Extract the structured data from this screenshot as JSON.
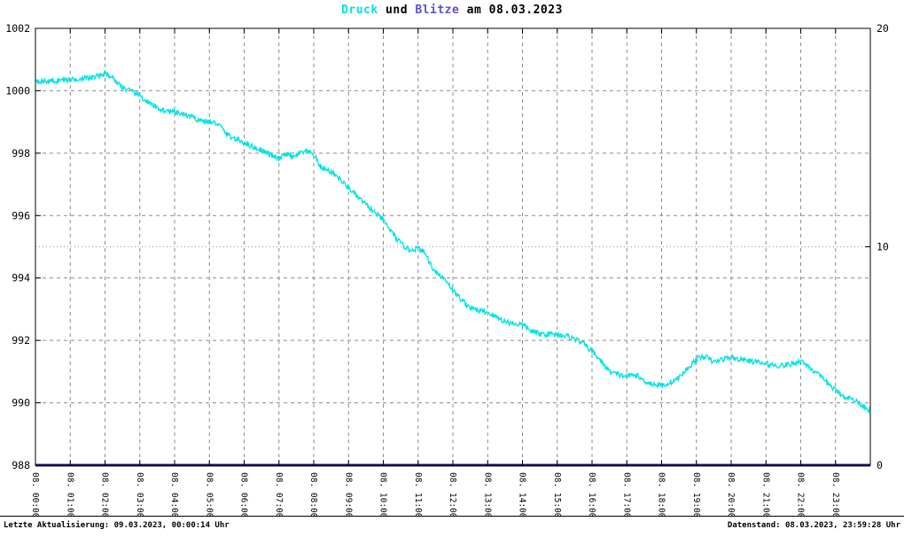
{
  "title": {
    "druck": "Druck",
    "und": "und",
    "blitze": "Blitze",
    "date": "am 08.03.2023"
  },
  "footer": {
    "left": "Letzte Aktualisierung: 09.03.2023, 00:00:14 Uhr",
    "right": "Datenstand: 08.03.2023, 23:59:28 Uhr"
  },
  "colors": {
    "druck": "#00e2e2",
    "blitze_title": "#5a4fd2",
    "blitze_line": "#221b7d",
    "grid": "#8c8c8c",
    "grid_dotted": "#9a9a9a",
    "axis": "#000000"
  },
  "chart_data": {
    "type": "line",
    "title": "Druck und Blitze am 08.03.2023",
    "x_range_hours": [
      0,
      24
    ],
    "x_tick_labels": [
      "08. 00:00",
      "08. 01:00",
      "08. 02:00",
      "08. 03:00",
      "08. 04:00",
      "08. 05:00",
      "08. 06:00",
      "08. 07:00",
      "08. 08:00",
      "08. 09:00",
      "08. 10:00",
      "08. 11:00",
      "08. 12:00",
      "08. 13:00",
      "08. 14:00",
      "08. 15:00",
      "08. 16:00",
      "08. 17:00",
      "08. 18:00",
      "08. 19:00",
      "08. 20:00",
      "08. 21:00",
      "08. 22:00",
      "08. 23:00"
    ],
    "left_axis": {
      "ticks": [
        988,
        990,
        992,
        994,
        996,
        998,
        1000,
        1002
      ],
      "range": [
        988,
        1002
      ]
    },
    "right_axis": {
      "ticks": [
        0,
        10,
        20
      ],
      "range": [
        0,
        20
      ]
    },
    "grid": "dashed",
    "legend_position": "none",
    "series": [
      {
        "name": "Druck",
        "color_key": "druck",
        "axis": "left",
        "noise": 0.09,
        "x": [
          0,
          0.25,
          0.5,
          0.75,
          1,
          1.25,
          1.5,
          1.75,
          2,
          2.2,
          2.4,
          2.6,
          2.8,
          3,
          3.25,
          3.5,
          3.75,
          4,
          4.25,
          4.5,
          4.75,
          5,
          5.25,
          5.5,
          5.75,
          6,
          6.25,
          6.5,
          6.75,
          7,
          7.2,
          7.4,
          7.6,
          7.8,
          8,
          8.2,
          8.4,
          8.6,
          8.8,
          9,
          9.25,
          9.5,
          9.75,
          10,
          10.25,
          10.5,
          10.75,
          11,
          11.2,
          11.4,
          11.6,
          11.8,
          12,
          12.25,
          12.5,
          12.75,
          13,
          13.25,
          13.5,
          13.75,
          14,
          14.25,
          14.5,
          14.75,
          15,
          15.25,
          15.5,
          15.75,
          16,
          16.25,
          16.5,
          16.75,
          17,
          17.25,
          17.5,
          17.75,
          18,
          18.25,
          18.5,
          18.75,
          19,
          19.25,
          19.5,
          19.75,
          20,
          20.25,
          20.5,
          20.75,
          21,
          21.25,
          21.5,
          21.75,
          22,
          22.25,
          22.5,
          22.75,
          23,
          23.25,
          23.5,
          23.75,
          24
        ],
        "values": [
          1000.35,
          1000.3,
          1000.3,
          1000.35,
          1000.35,
          1000.4,
          1000.4,
          1000.45,
          1000.55,
          1000.45,
          1000.2,
          1000.05,
          999.95,
          999.85,
          999.6,
          999.45,
          999.35,
          999.3,
          999.25,
          999.15,
          999.05,
          999.0,
          998.95,
          998.6,
          998.45,
          998.35,
          998.2,
          998.1,
          997.95,
          997.8,
          998.0,
          997.85,
          998.0,
          998.05,
          997.95,
          997.55,
          997.45,
          997.35,
          997.1,
          996.9,
          996.6,
          996.35,
          996.1,
          995.85,
          995.45,
          995.1,
          994.9,
          994.95,
          994.8,
          994.35,
          994.1,
          993.95,
          993.6,
          993.3,
          993.05,
          992.95,
          992.9,
          992.75,
          992.6,
          992.55,
          992.5,
          992.3,
          992.2,
          992.2,
          992.2,
          992.15,
          992.05,
          991.9,
          991.65,
          991.35,
          991.0,
          990.9,
          990.85,
          990.9,
          990.7,
          990.6,
          990.55,
          990.65,
          990.8,
          991.1,
          991.4,
          991.5,
          991.3,
          991.4,
          991.45,
          991.4,
          991.35,
          991.3,
          991.25,
          991.2,
          991.2,
          991.25,
          991.35,
          991.15,
          990.9,
          990.65,
          990.4,
          990.2,
          990.1,
          989.95,
          989.75
        ]
      },
      {
        "name": "Blitze",
        "color_key": "blitze_line",
        "axis": "right",
        "noise": 0,
        "x": [
          0,
          24
        ],
        "values": [
          0,
          0
        ]
      }
    ]
  }
}
